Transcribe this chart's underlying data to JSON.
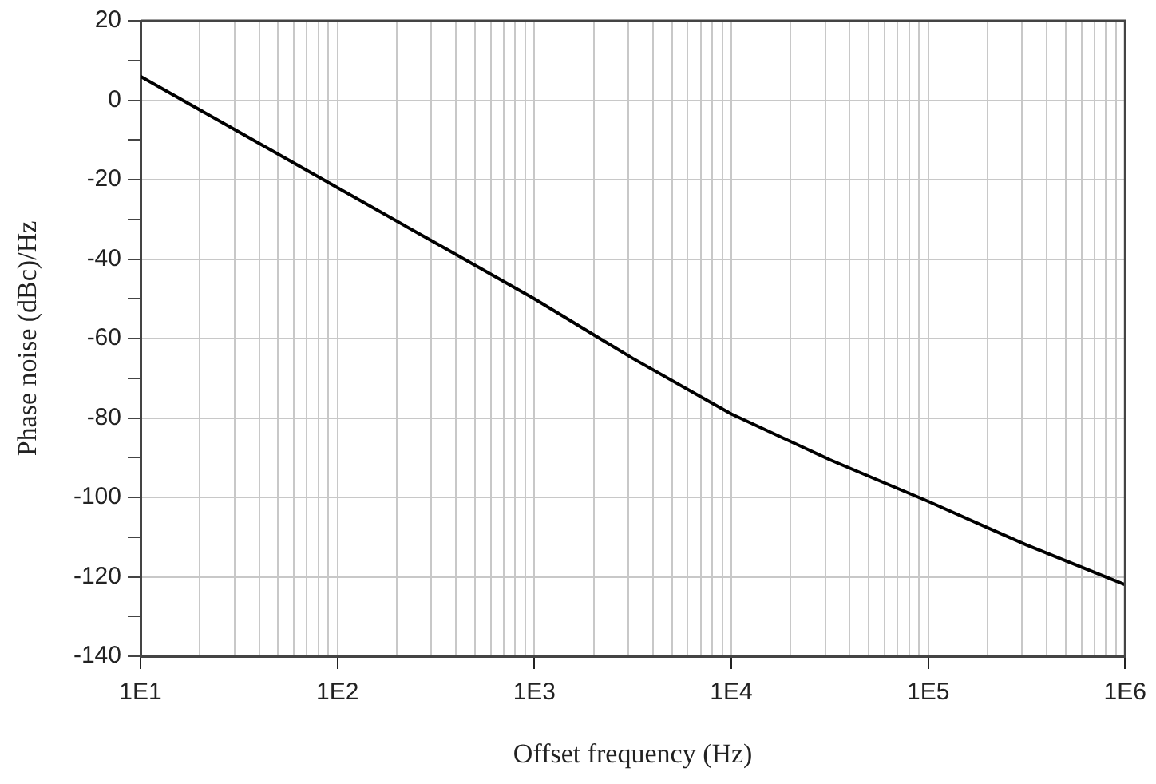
{
  "chart_data": {
    "type": "line",
    "xlabel": "Offset frequency (Hz)",
    "ylabel": "Phase noise (dBc)/Hz",
    "log": "x",
    "grid": true,
    "legend": false,
    "marker": "none",
    "line_style": "solid",
    "x": [
      10,
      31.6,
      100,
      316,
      1000,
      3160,
      10000,
      31600,
      100000,
      316000,
      1000000
    ],
    "series": [
      {
        "color": "#000000",
        "values": [
          6,
          -8,
          -22,
          -36,
          -50,
          -65,
          -79,
          -90.5,
          -101,
          -112,
          -122
        ]
      }
    ],
    "xlim": [
      10,
      1000000
    ],
    "xticks": [
      {
        "value": 10,
        "label": "1E1"
      },
      {
        "value": 20,
        "label": null
      },
      {
        "value": 30,
        "label": null
      },
      {
        "value": 40,
        "label": null
      },
      {
        "value": 50,
        "label": null
      },
      {
        "value": 60,
        "label": null
      },
      {
        "value": 70,
        "label": null
      },
      {
        "value": 80,
        "label": null
      },
      {
        "value": 90,
        "label": null
      },
      {
        "value": 100,
        "label": "1E2"
      },
      {
        "value": 200,
        "label": null
      },
      {
        "value": 300,
        "label": null
      },
      {
        "value": 400,
        "label": null
      },
      {
        "value": 500,
        "label": null
      },
      {
        "value": 600,
        "label": null
      },
      {
        "value": 700,
        "label": null
      },
      {
        "value": 800,
        "label": null
      },
      {
        "value": 900,
        "label": null
      },
      {
        "value": 1000,
        "label": "1E3"
      },
      {
        "value": 2000,
        "label": null
      },
      {
        "value": 3000,
        "label": null
      },
      {
        "value": 4000,
        "label": null
      },
      {
        "value": 5000,
        "label": null
      },
      {
        "value": 6000,
        "label": null
      },
      {
        "value": 7000,
        "label": null
      },
      {
        "value": 8000,
        "label": null
      },
      {
        "value": 9000,
        "label": null
      },
      {
        "value": 10000,
        "label": "1E4"
      },
      {
        "value": 20000,
        "label": null
      },
      {
        "value": 30000,
        "label": null
      },
      {
        "value": 40000,
        "label": null
      },
      {
        "value": 50000,
        "label": null
      },
      {
        "value": 60000,
        "label": null
      },
      {
        "value": 70000,
        "label": null
      },
      {
        "value": 80000,
        "label": null
      },
      {
        "value": 90000,
        "label": null
      },
      {
        "value": 100000,
        "label": "1E5"
      },
      {
        "value": 200000,
        "label": null
      },
      {
        "value": 300000,
        "label": null
      },
      {
        "value": 400000,
        "label": null
      },
      {
        "value": 500000,
        "label": null
      },
      {
        "value": 600000,
        "label": null
      },
      {
        "value": 700000,
        "label": null
      },
      {
        "value": 800000,
        "label": null
      },
      {
        "value": 900000,
        "label": null
      },
      {
        "value": 1000000,
        "label": "1E6"
      }
    ],
    "ylim": [
      -140,
      20
    ],
    "yticks": [
      -140,
      {
        "value": -130,
        "label": null
      },
      -120,
      {
        "value": -110,
        "label": null
      },
      -100,
      {
        "value": -90,
        "label": null
      },
      -80,
      {
        "value": -70,
        "label": null
      },
      -60,
      {
        "value": -50,
        "label": null
      },
      -40,
      {
        "value": -30,
        "label": null
      },
      -20,
      {
        "value": -10,
        "label": null
      },
      0,
      {
        "value": 10,
        "label": null
      },
      20
    ]
  }
}
